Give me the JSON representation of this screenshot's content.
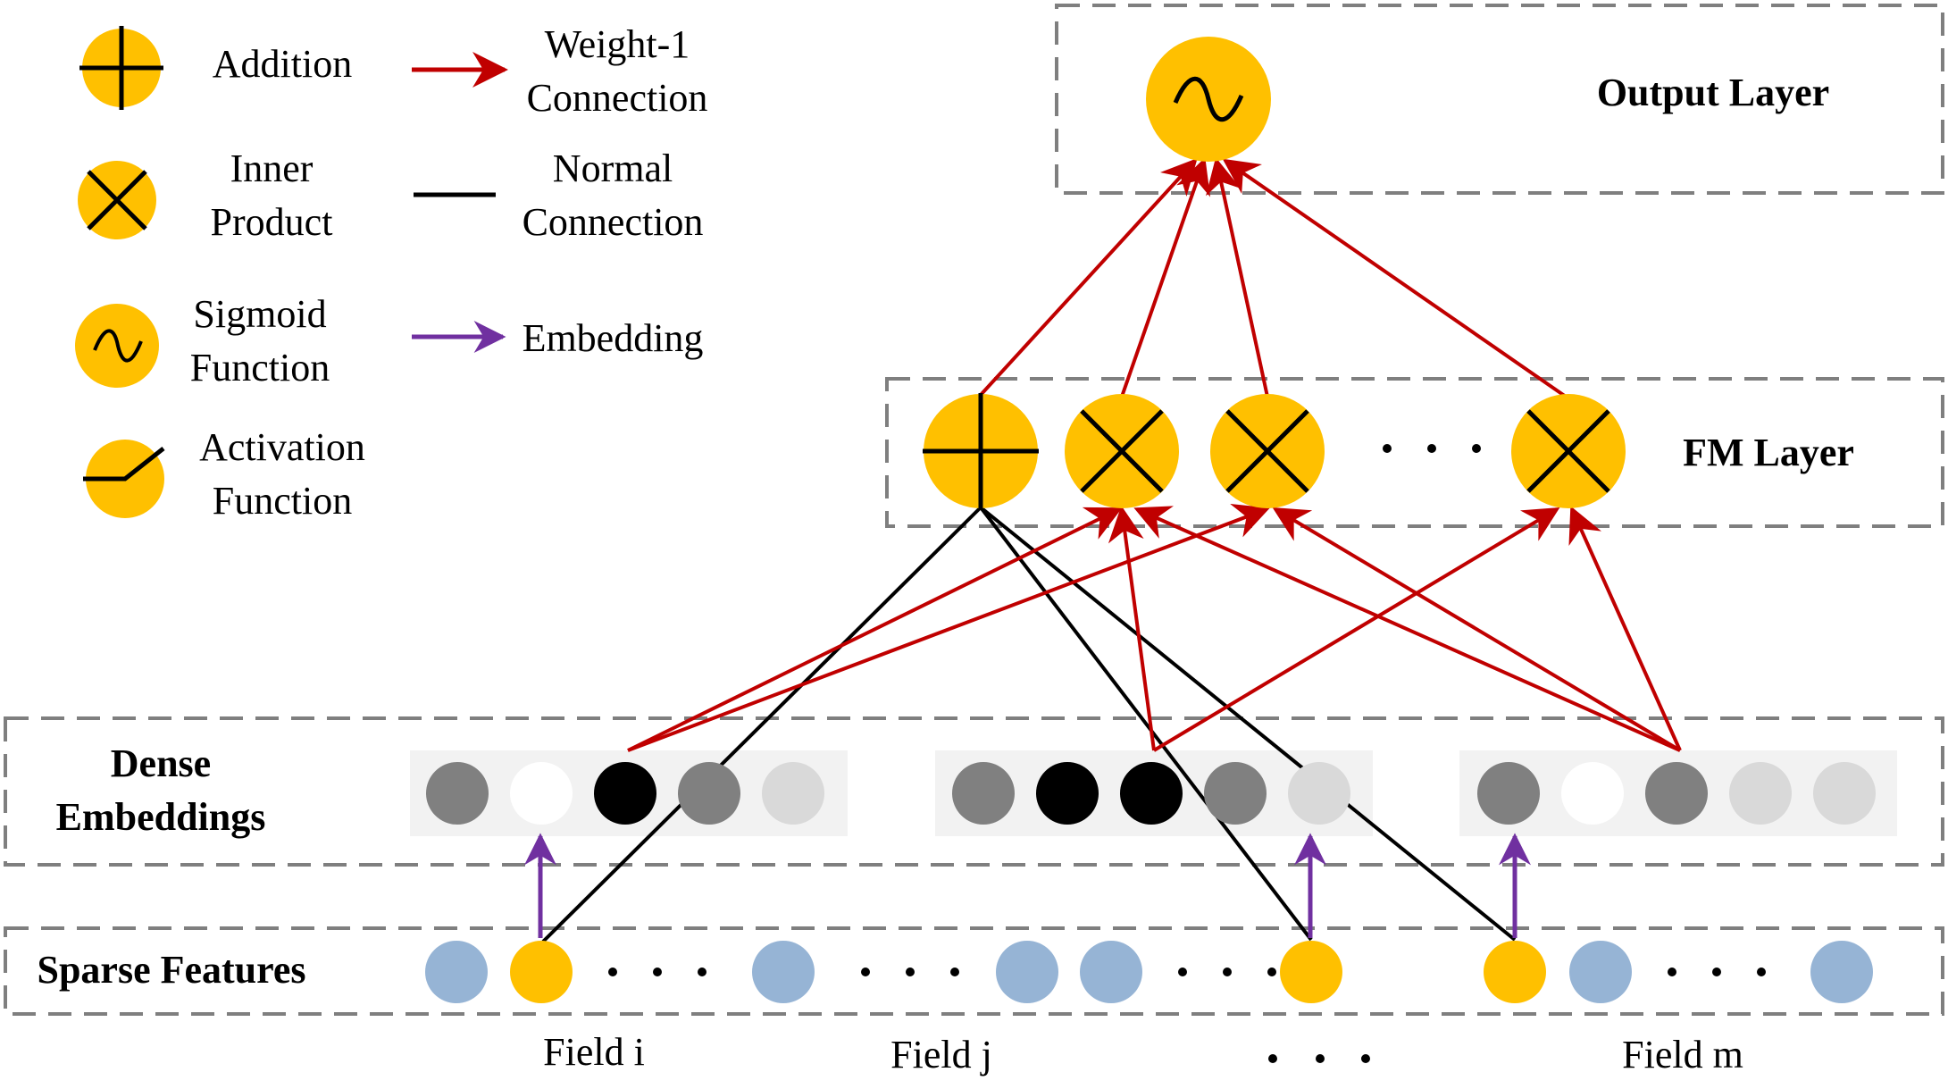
{
  "colors": {
    "node_yellow": "#FFC000",
    "sparse_blue": "#96B4D5",
    "weight1_red": "#C00000",
    "embedding_purple": "#7030A0",
    "normal_black": "#000000",
    "dash_gray": "#7F7F7F",
    "embed_bg": "#F2F2F2"
  },
  "legend": {
    "addition": "Addition",
    "inner_product": [
      "Inner",
      "Product"
    ],
    "sigmoid": [
      "Sigmoid",
      "Function"
    ],
    "activation": [
      "Activation",
      "Function"
    ],
    "weight1": [
      "Weight-1",
      "Connection"
    ],
    "normal": [
      "Normal",
      "Connection"
    ],
    "embedding": "Embedding"
  },
  "layers": {
    "output": "Output Layer",
    "fm": "FM Layer",
    "dense": [
      "Dense",
      "Embeddings"
    ],
    "sparse": "Sparse Features"
  },
  "fields": {
    "i": "Field i",
    "j": "Field j",
    "m": "Field m"
  },
  "dense_embeddings": [
    [
      "#808080",
      "#FFFFFF",
      "#000000",
      "#808080",
      "#D9D9D9"
    ],
    [
      "#808080",
      "#000000",
      "#000000",
      "#808080",
      "#D9D9D9"
    ],
    [
      "#808080",
      "#FFFFFF",
      "#808080",
      "#D9D9D9",
      "#D9D9D9"
    ]
  ],
  "sparse_features": [
    "blue",
    "yellow",
    "dots",
    "blue",
    "dots",
    "blue",
    "blue",
    "dots",
    "yellow",
    "yellow",
    "blue",
    "dots",
    "blue"
  ],
  "fm_nodes": [
    "addition-icon",
    "inner-product-icon",
    "inner-product-icon",
    "ellipsis",
    "inner-product-icon"
  ],
  "output_node": "sigmoid-icon"
}
